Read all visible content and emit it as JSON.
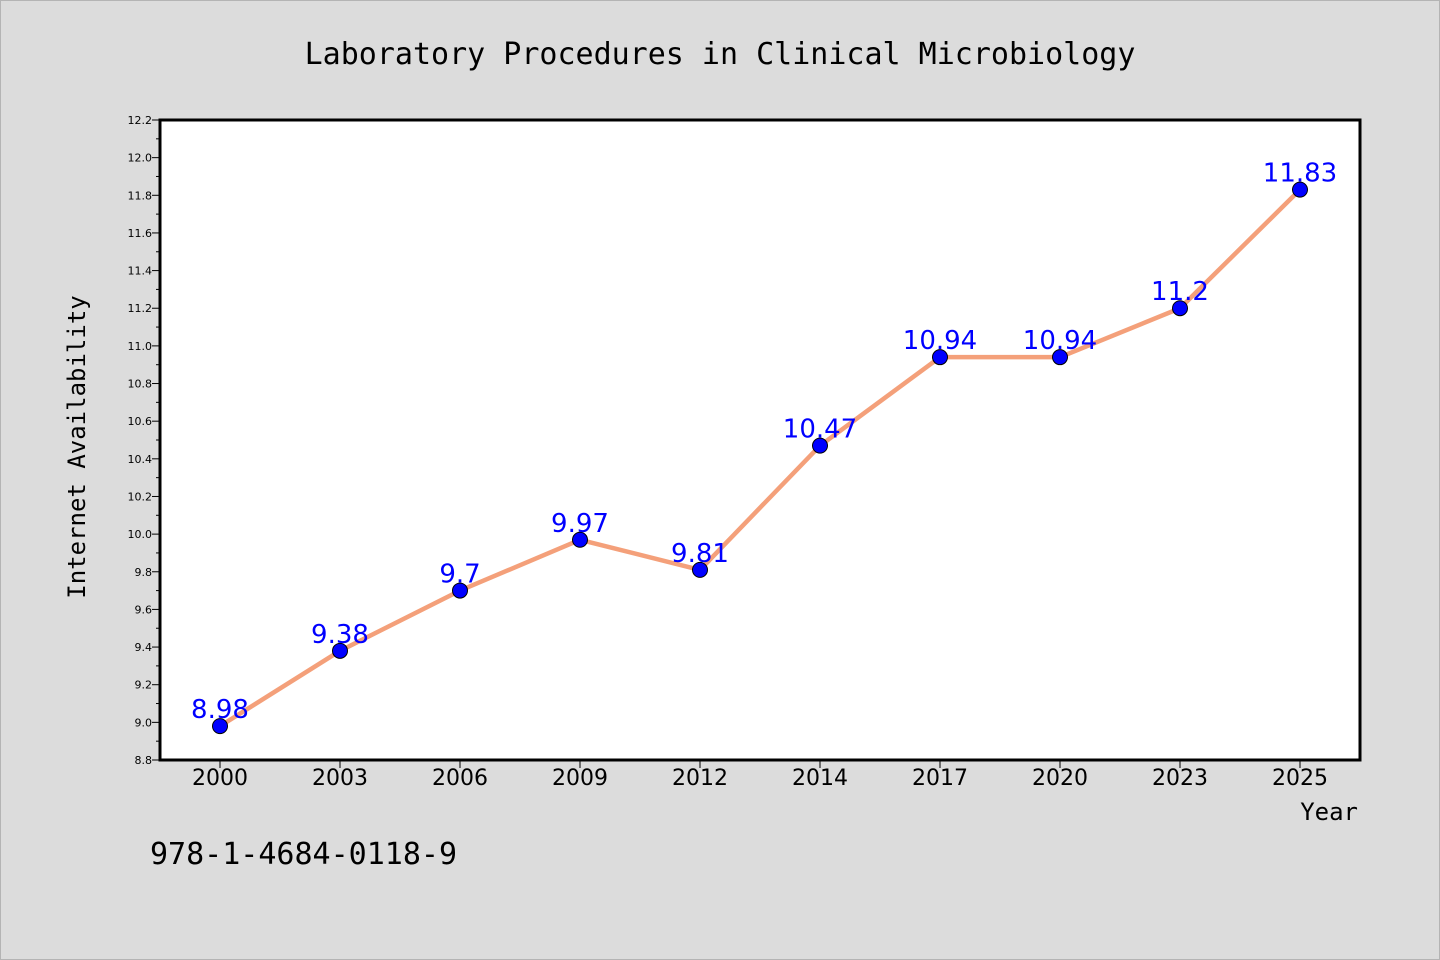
{
  "chart_data": {
    "type": "line",
    "title": "Laboratory Procedures in Clinical Microbiology",
    "xlabel": "Year",
    "ylabel": "Internet Availability",
    "categories": [
      "2000",
      "2003",
      "2006",
      "2009",
      "2012",
      "2014",
      "2017",
      "2020",
      "2023",
      "2025"
    ],
    "series": [
      {
        "values": [
          8.98,
          9.38,
          9.7,
          9.97,
          9.81,
          10.47,
          10.94,
          10.94,
          11.2,
          11.83
        ],
        "data_labels": [
          "8.98",
          "9.38",
          "9.7",
          "9.97",
          "9.81",
          "10.47",
          "10.94",
          "10.94",
          "11.2",
          "11.83"
        ],
        "line_color": "#f4a07a",
        "marker_color": "#0000ff"
      }
    ],
    "ylim": [
      8.8,
      12.2
    ],
    "yticks": [
      "8.8",
      "9.0",
      "9.2",
      "9.4",
      "9.6",
      "9.8",
      "10.0",
      "10.2",
      "10.4",
      "10.6",
      "10.8",
      "11.0",
      "11.2",
      "11.4",
      "11.6",
      "11.8",
      "12.0",
      "12.2"
    ],
    "grid": false,
    "legend": "none",
    "annotation": "978-1-4684-0118-9"
  },
  "colors": {
    "background": "#dcdcdc",
    "plot_area": "#ffffff",
    "line": "#f4a07a",
    "marker": "#0000ff",
    "data_label": "#0000ff"
  }
}
